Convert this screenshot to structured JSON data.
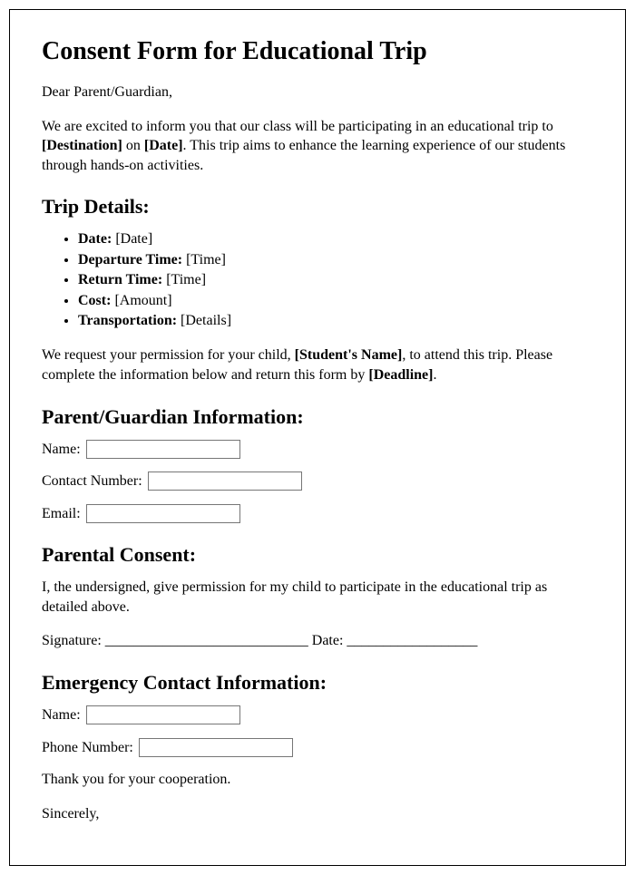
{
  "title": "Consent Form for Educational Trip",
  "salutation": "Dear Parent/Guardian,",
  "intro_prefix": "We are excited to inform you that our class will be participating in an educational trip to ",
  "intro_destination": "[Destination]",
  "intro_middle": " on ",
  "intro_date": "[Date]",
  "intro_suffix": ". This trip aims to enhance the learning experience of our students through hands-on activities.",
  "trip_details_heading": "Trip Details:",
  "trip_details": [
    {
      "label": "Date:",
      "value": "[Date]"
    },
    {
      "label": "Departure Time:",
      "value": "[Time]"
    },
    {
      "label": "Return Time:",
      "value": "[Time]"
    },
    {
      "label": "Cost:",
      "value": "[Amount]"
    },
    {
      "label": "Transportation:",
      "value": "[Details]"
    }
  ],
  "permission_prefix": "We request your permission for your child, ",
  "permission_name": "[Student's Name]",
  "permission_middle": ", to attend this trip. Please complete the information below and return this form by ",
  "permission_deadline": "[Deadline]",
  "permission_suffix": ".",
  "parent_info_heading": "Parent/Guardian Information:",
  "parent_name_label": "Name:",
  "parent_contact_label": "Contact Number:",
  "parent_email_label": "Email:",
  "consent_heading": "Parental Consent:",
  "consent_text": "I, the undersigned, give permission for my child to participate in the educational trip as detailed above.",
  "signature_label": "Signature: ____________________________ Date: __________________",
  "emergency_heading": "Emergency Contact Information:",
  "emergency_name_label": "Name:",
  "emergency_phone_label": "Phone Number:",
  "thanks": "Thank you for your cooperation.",
  "closing": "Sincerely,",
  "input_widths": {
    "name": 170,
    "contact": 170,
    "email": 170,
    "em_name": 170,
    "em_phone": 170
  }
}
